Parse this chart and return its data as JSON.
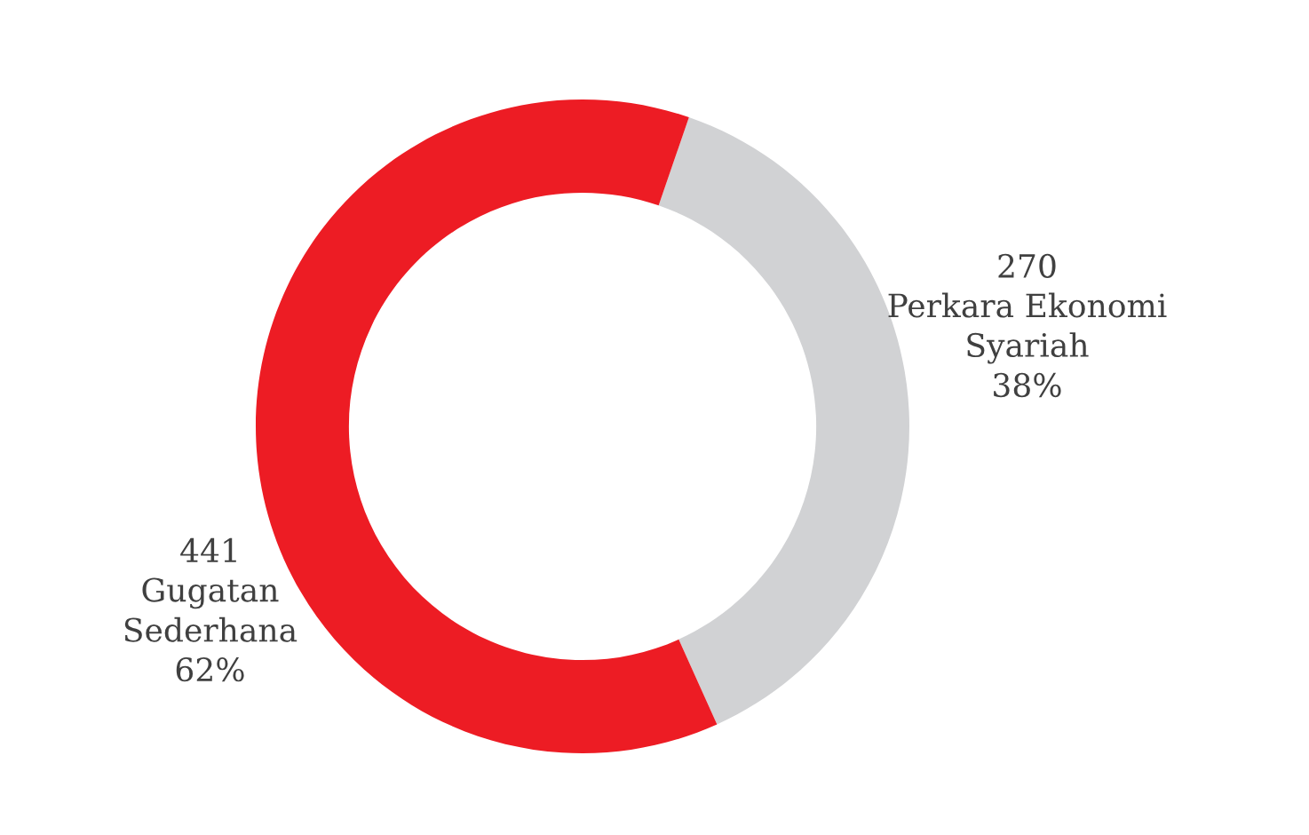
{
  "chart_data": {
    "type": "donut",
    "categories": [
      "Perkara Ekonomi Syariah",
      "Gugatan Sederhana"
    ],
    "values": [
      270,
      441
    ],
    "colors": [
      "#d1d2d4",
      "#ed1c24"
    ],
    "data_labels": true,
    "annotations": [
      "38%",
      "62%"
    ],
    "legend": false
  }
}
